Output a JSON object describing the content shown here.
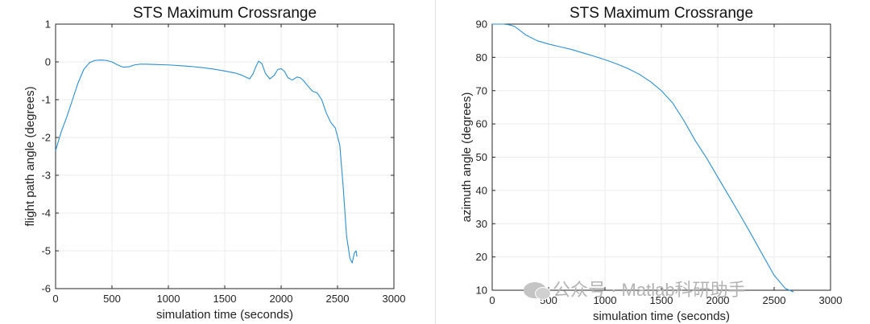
{
  "chart_data": [
    {
      "type": "line",
      "title": "STS Maximum Crossrange",
      "xlabel": "simulation time (seconds)",
      "ylabel": "flight path angle (degrees)",
      "xlim": [
        0,
        3000
      ],
      "ylim": [
        -6,
        1
      ],
      "xticks": [
        0,
        500,
        1000,
        1500,
        2000,
        2500,
        3000
      ],
      "yticks": [
        1,
        0,
        -1,
        -2,
        -3,
        -4,
        -5,
        -6
      ],
      "grid": true,
      "color": "#2b8fd0",
      "series": [
        {
          "x": [
            0,
            50,
            100,
            150,
            200,
            250,
            300,
            350,
            400,
            450,
            500,
            550,
            600,
            650,
            700,
            750,
            800,
            900,
            1000,
            1100,
            1200,
            1300,
            1400,
            1500,
            1600,
            1650,
            1700,
            1720,
            1750,
            1780,
            1800,
            1830,
            1860,
            1900,
            1940,
            1970,
            2000,
            2030,
            2060,
            2100,
            2140,
            2170,
            2200,
            2240,
            2280,
            2320,
            2360,
            2400,
            2440,
            2480,
            2520,
            2550,
            2580,
            2610,
            2630,
            2650,
            2665,
            2672
          ],
          "y": [
            -2.35,
            -1.85,
            -1.45,
            -1.0,
            -0.55,
            -0.2,
            -0.02,
            0.04,
            0.05,
            0.04,
            0.0,
            -0.08,
            -0.14,
            -0.13,
            -0.08,
            -0.06,
            -0.06,
            -0.07,
            -0.08,
            -0.1,
            -0.12,
            -0.15,
            -0.19,
            -0.24,
            -0.3,
            -0.35,
            -0.42,
            -0.45,
            -0.32,
            -0.1,
            0.02,
            -0.05,
            -0.3,
            -0.45,
            -0.35,
            -0.2,
            -0.18,
            -0.25,
            -0.42,
            -0.48,
            -0.4,
            -0.42,
            -0.5,
            -0.65,
            -0.78,
            -0.82,
            -1.0,
            -1.35,
            -1.6,
            -1.75,
            -2.2,
            -3.3,
            -4.6,
            -5.2,
            -5.32,
            -5.05,
            -5.0,
            -5.15
          ]
        }
      ]
    },
    {
      "type": "line",
      "title": "STS Maximum Crossrange",
      "xlabel": "simulation time (seconds)",
      "ylabel": "azimuth angle (degrees)",
      "xlim": [
        0,
        3000
      ],
      "ylim": [
        10,
        90
      ],
      "xticks": [
        0,
        500,
        1000,
        1500,
        2000,
        2500,
        3000
      ],
      "yticks": [
        90,
        80,
        70,
        60,
        50,
        40,
        30,
        20,
        10
      ],
      "grid": true,
      "color": "#2b8fd0",
      "series": [
        {
          "x": [
            0,
            50,
            100,
            150,
            200,
            250,
            300,
            400,
            500,
            600,
            700,
            800,
            900,
            1000,
            1100,
            1200,
            1300,
            1400,
            1500,
            1600,
            1700,
            1800,
            1900,
            2000,
            2100,
            2200,
            2300,
            2400,
            2500,
            2600,
            2672
          ],
          "y": [
            90,
            90,
            90,
            89.8,
            89.3,
            88.0,
            86.7,
            85.0,
            84.0,
            83.2,
            82.4,
            81.4,
            80.4,
            79.3,
            78.1,
            76.7,
            75.0,
            72.8,
            70.0,
            66.3,
            61.0,
            55.0,
            49.8,
            44.0,
            38.3,
            32.5,
            26.6,
            20.5,
            14.5,
            10.5,
            9.5
          ]
        }
      ]
    }
  ],
  "watermark": {
    "icon": "wechat-icon",
    "text": "公众号 · Matlab科研助手"
  }
}
